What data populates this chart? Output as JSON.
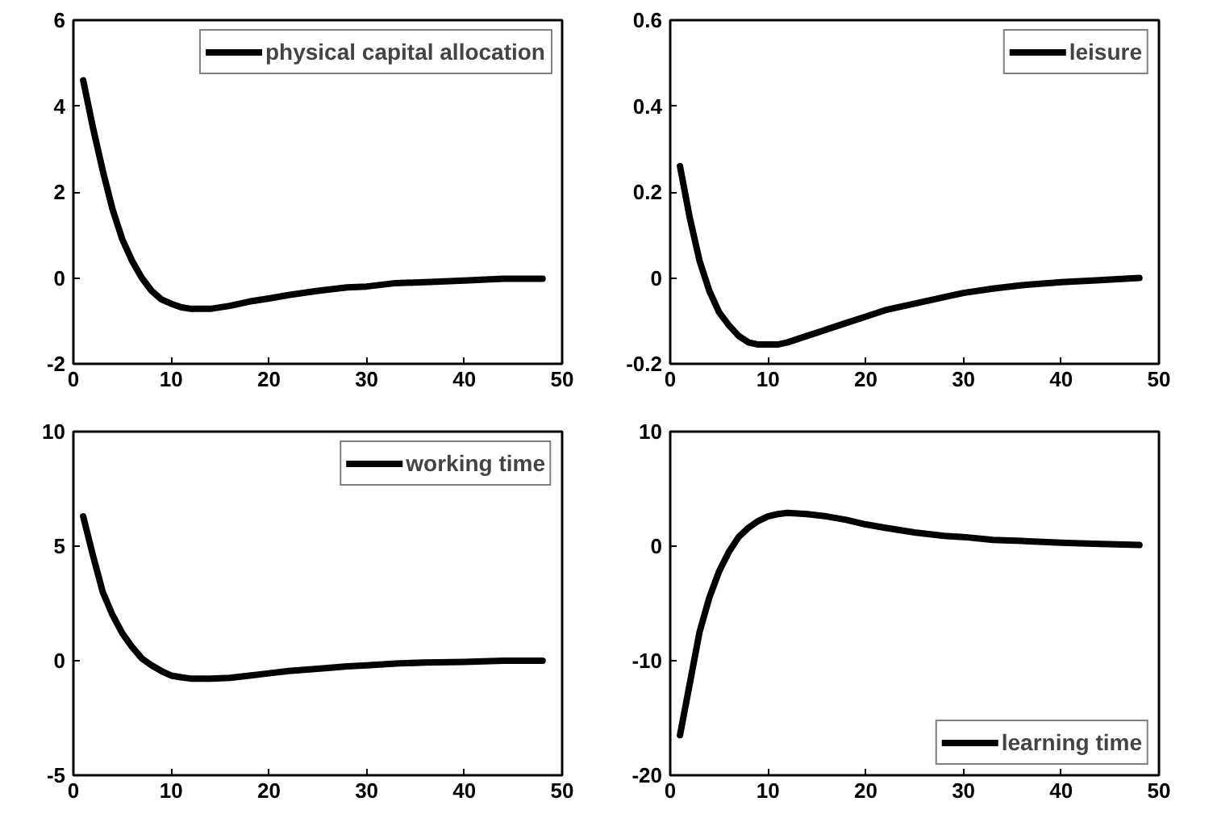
{
  "chart_data": [
    {
      "type": "line",
      "x": [
        1,
        2,
        3,
        4,
        5,
        6,
        7,
        8,
        9,
        10,
        11,
        12,
        14,
        16,
        18,
        20,
        22,
        25,
        28,
        30,
        33,
        36,
        40,
        44,
        48
      ],
      "xlim": [
        0,
        50
      ],
      "xticks": [
        0,
        10,
        20,
        30,
        40,
        50
      ],
      "ylim": [
        -2,
        6
      ],
      "yticks": [
        -2,
        0,
        2,
        4,
        6
      ],
      "grid": false,
      "legend": "top right",
      "series": [
        {
          "name": "physical capital allocation",
          "color": "#000000",
          "values": [
            4.6,
            3.5,
            2.5,
            1.6,
            0.9,
            0.4,
            0.0,
            -0.3,
            -0.5,
            -0.6,
            -0.68,
            -0.72,
            -0.72,
            -0.65,
            -0.55,
            -0.48,
            -0.4,
            -0.3,
            -0.22,
            -0.2,
            -0.12,
            -0.1,
            -0.06,
            -0.02,
            -0.02
          ]
        }
      ]
    },
    {
      "type": "line",
      "x": [
        1,
        2,
        3,
        4,
        5,
        6,
        7,
        8,
        9,
        10,
        11,
        12,
        14,
        16,
        18,
        20,
        22,
        25,
        28,
        30,
        33,
        36,
        40,
        44,
        48
      ],
      "xlim": [
        0,
        50
      ],
      "xticks": [
        0,
        10,
        20,
        30,
        40,
        50
      ],
      "ylim": [
        -0.2,
        0.6
      ],
      "yticks": [
        -0.2,
        0,
        0.2,
        0.4,
        0.6
      ],
      "grid": false,
      "legend": "top right",
      "series": [
        {
          "name": "leisure",
          "color": "#000000",
          "values": [
            0.26,
            0.14,
            0.04,
            -0.03,
            -0.08,
            -0.11,
            -0.135,
            -0.15,
            -0.155,
            -0.155,
            -0.155,
            -0.15,
            -0.135,
            -0.12,
            -0.105,
            -0.09,
            -0.075,
            -0.06,
            -0.045,
            -0.035,
            -0.025,
            -0.017,
            -0.01,
            -0.005,
            0.0
          ]
        }
      ]
    },
    {
      "type": "line",
      "x": [
        1,
        2,
        3,
        4,
        5,
        6,
        7,
        8,
        9,
        10,
        11,
        12,
        14,
        16,
        18,
        20,
        22,
        25,
        28,
        30,
        33,
        36,
        40,
        44,
        48
      ],
      "xlim": [
        0,
        50
      ],
      "xticks": [
        0,
        10,
        20,
        30,
        40,
        50
      ],
      "ylim": [
        -5,
        10
      ],
      "yticks": [
        -5,
        0,
        5,
        10
      ],
      "grid": false,
      "legend": "top right",
      "series": [
        {
          "name": "working time",
          "color": "#000000",
          "values": [
            6.3,
            4.6,
            3.0,
            2.0,
            1.2,
            0.6,
            0.1,
            -0.2,
            -0.45,
            -0.65,
            -0.72,
            -0.78,
            -0.78,
            -0.75,
            -0.65,
            -0.55,
            -0.45,
            -0.35,
            -0.25,
            -0.2,
            -0.12,
            -0.08,
            -0.05,
            0.0,
            0.0
          ]
        }
      ]
    },
    {
      "type": "line",
      "x": [
        1,
        2,
        3,
        4,
        5,
        6,
        7,
        8,
        9,
        10,
        11,
        12,
        14,
        16,
        18,
        20,
        22,
        25,
        28,
        30,
        33,
        36,
        40,
        44,
        48
      ],
      "xlim": [
        0,
        50
      ],
      "xticks": [
        0,
        10,
        20,
        30,
        40,
        50
      ],
      "ylim": [
        -20,
        10
      ],
      "yticks": [
        -20,
        -10,
        0,
        10
      ],
      "grid": false,
      "legend": "bottom right",
      "series": [
        {
          "name": "learning time",
          "color": "#000000",
          "values": [
            -16.5,
            -12,
            -7.5,
            -4.5,
            -2.2,
            -0.5,
            0.8,
            1.6,
            2.2,
            2.6,
            2.8,
            2.9,
            2.8,
            2.6,
            2.3,
            1.9,
            1.6,
            1.2,
            0.9,
            0.8,
            0.55,
            0.45,
            0.3,
            0.2,
            0.1
          ]
        }
      ]
    }
  ]
}
